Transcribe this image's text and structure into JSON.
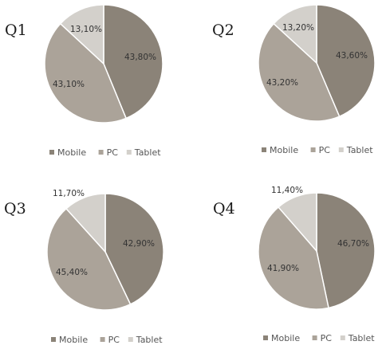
{
  "chart_data": [
    {
      "type": "pie",
      "title": "Q1",
      "categories": [
        "Mobile",
        "PC",
        "Tablet"
      ],
      "values": [
        43.8,
        43.1,
        13.1
      ],
      "labels": [
        "43,80%",
        "43,10%",
        "13,10%"
      ],
      "colors": [
        "#8b8378",
        "#aba399",
        "#d3d0cb"
      ],
      "legend": "bottom"
    },
    {
      "type": "pie",
      "title": "Q2",
      "categories": [
        "Mobile",
        "PC",
        "Tablet"
      ],
      "values": [
        43.6,
        43.2,
        13.2
      ],
      "labels": [
        "43,60%",
        "43,20%",
        "13,20%"
      ],
      "colors": [
        "#8b8378",
        "#aba399",
        "#d3d0cb"
      ],
      "legend": "bottom"
    },
    {
      "type": "pie",
      "title": "Q3",
      "categories": [
        "Mobile",
        "PC",
        "Tablet"
      ],
      "values": [
        42.9,
        45.4,
        11.7
      ],
      "labels": [
        "42,90%",
        "45,40%",
        "11,70%"
      ],
      "colors": [
        "#8b8378",
        "#aba399",
        "#d3d0cb"
      ],
      "legend": "bottom"
    },
    {
      "type": "pie",
      "title": "Q4",
      "categories": [
        "Mobile",
        "PC",
        "Tablet"
      ],
      "values": [
        46.7,
        41.9,
        11.4
      ],
      "labels": [
        "46,70%",
        "41,90%",
        "11,40%"
      ],
      "colors": [
        "#8b8378",
        "#aba399",
        "#d3d0cb"
      ],
      "legend": "bottom"
    }
  ]
}
